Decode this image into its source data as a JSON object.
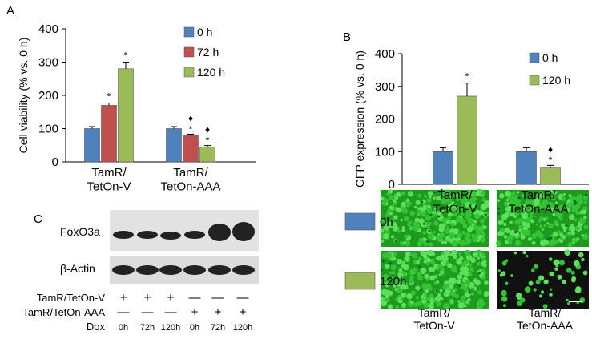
{
  "chart_data": [
    {
      "type": "bar",
      "panel_label": "A",
      "ylabel": "Cell viability (% vs. 0 h)",
      "categories": [
        "TamR/\nTetOn-V",
        "TamR/\nTetOn-AAA"
      ],
      "ylim": [
        0,
        400
      ],
      "yticks": [
        0,
        100,
        200,
        300,
        400
      ],
      "series": [
        {
          "name": "0 h",
          "color": "#4f81bd",
          "values": [
            100,
            100
          ],
          "errors": [
            6,
            6
          ],
          "annotations": [
            null,
            null
          ]
        },
        {
          "name": "72 h",
          "color": "#c0504d",
          "values": [
            170,
            80
          ],
          "errors": [
            7,
            3
          ],
          "annotations": [
            "*",
            "♦\n*"
          ]
        },
        {
          "name": "120 h",
          "color": "#9bbb59",
          "values": [
            280,
            45
          ],
          "errors": [
            20,
            4
          ],
          "annotations": [
            "*",
            "♦\n*"
          ]
        }
      ]
    },
    {
      "type": "bar",
      "panel_label": "B",
      "ylabel": "GFP expression (% vs. 0 h)",
      "categories": [
        "TamR/\nTetOn-V",
        "TamR/\nTetOn-AAA"
      ],
      "ylim": [
        0,
        400
      ],
      "yticks": [
        0,
        100,
        200,
        300,
        400
      ],
      "series": [
        {
          "name": "0 h",
          "color": "#4f81bd",
          "values": [
            100,
            100
          ],
          "errors": [
            12,
            12
          ],
          "annotations": [
            null,
            null
          ]
        },
        {
          "name": "120 h",
          "color": "#9bbb59",
          "values": [
            270,
            50
          ],
          "errors": [
            40,
            8
          ],
          "annotations": [
            "*",
            "♦\n*"
          ]
        }
      ]
    }
  ],
  "blot": {
    "label": "C",
    "bands": [
      "FoxO3a",
      "β-Actin"
    ],
    "conditions": [
      {
        "name": "TamR/TetOn-V",
        "cells": [
          "+",
          "+",
          "+",
          "—",
          "—",
          "—"
        ]
      },
      {
        "name": "TamR/TetOn-AAA",
        "cells": [
          "—",
          "—",
          "—",
          "+",
          "+",
          "+"
        ]
      },
      {
        "name": "Dox",
        "cells": [
          "0h",
          "72h",
          "120h",
          "0h",
          "72h",
          "120h"
        ]
      }
    ]
  },
  "images": {
    "legend": [
      {
        "name": "0h",
        "color": "#4f81bd"
      },
      {
        "name": "120h",
        "color": "#9bbb59"
      }
    ],
    "columns": [
      "TamR/\nTetOn-V",
      "TamR/\nTetOn-AAA"
    ]
  }
}
